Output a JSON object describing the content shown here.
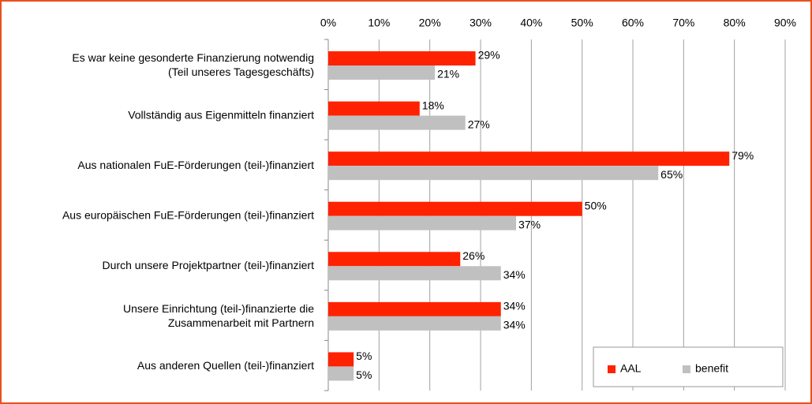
{
  "chart_data": {
    "type": "bar",
    "orientation": "horizontal",
    "categories": [
      "Es war keine gesonderte Finanzierung notwendig\n(Teil unseres Tagesgeschäfts)",
      "Vollständig aus Eigenmitteln finanziert",
      "Aus nationalen FuE-Förderungen (teil-)finanziert",
      "Aus europäischen FuE-Förderungen (teil-)finanziert",
      "Durch unsere Projektpartner (teil-)finanziert",
      "Unsere Einrichtung (teil-)finanzierte die\nZusammenarbeit mit Partnern",
      "Aus anderen Quellen (teil-)finanziert"
    ],
    "series": [
      {
        "name": "AAL",
        "color": "#ff2200",
        "values": [
          29,
          18,
          79,
          50,
          26,
          34,
          5
        ],
        "value_labels": [
          "29%",
          "18%",
          "79%",
          "50%",
          "26%",
          "34%",
          "5%"
        ]
      },
      {
        "name": "benefit",
        "color": "#c0c0c0",
        "values": [
          21,
          27,
          65,
          37,
          34,
          34,
          5
        ],
        "value_labels": [
          "21%",
          "27%",
          "65%",
          "37%",
          "34%",
          "34%",
          "5%"
        ]
      }
    ],
    "xlim": [
      0,
      90
    ],
    "xticks": [
      {
        "value": 0,
        "label": "0%"
      },
      {
        "value": 10,
        "label": "10%"
      },
      {
        "value": 20,
        "label": "20%"
      },
      {
        "value": 30,
        "label": "30%"
      },
      {
        "value": 40,
        "label": "40%"
      },
      {
        "value": 50,
        "label": "50%"
      },
      {
        "value": 60,
        "label": "60%"
      },
      {
        "value": 70,
        "label": "70%"
      },
      {
        "value": 80,
        "label": "80%"
      },
      {
        "value": 90,
        "label": "90%"
      }
    ],
    "grid": true,
    "legend": "lower right"
  }
}
